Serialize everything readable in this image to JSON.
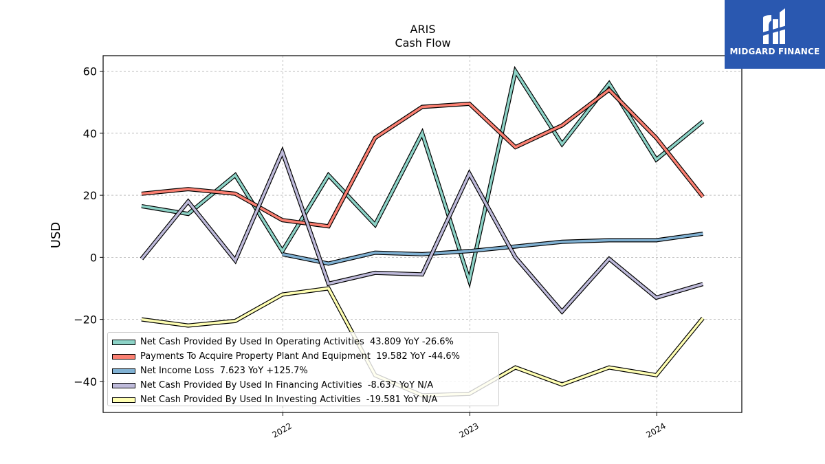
{
  "logo": {
    "text": "MIDGARD FINANCE",
    "color": "#2a58b0"
  },
  "chart_data": {
    "type": "line",
    "title": "ARIS",
    "subtitle": "Cash Flow",
    "xlabel": "",
    "ylabel": "USD",
    "ylim": [
      -50,
      65
    ],
    "xlim": [
      "2021-01-15",
      "2024-06-15"
    ],
    "yticks": [
      -40,
      -20,
      0,
      20,
      40,
      60
    ],
    "ytick_labels": [
      "−40",
      "−20",
      "0",
      "20",
      "40",
      "60"
    ],
    "xticks": [
      "2022-01-01",
      "2023-01-01",
      "2024-01-01"
    ],
    "xtick_labels": [
      "2022",
      "2023",
      "2024"
    ],
    "grid": true,
    "legend_position": "lower-left",
    "series": [
      {
        "name": "Net Cash Provided By Used In Operating Activities",
        "legend_label": "Net Cash Provided By Used In Operating Activities  43.809 YoY -26.6%",
        "color": "#8dd3c7",
        "x": [
          "2021-03-31",
          "2021-06-30",
          "2021-09-30",
          "2021-12-31",
          "2022-03-31",
          "2022-06-30",
          "2022-09-30",
          "2022-12-31",
          "2023-03-31",
          "2023-06-30",
          "2023-09-30",
          "2023-12-31",
          "2024-03-31"
        ],
        "values": [
          16.5,
          14.0,
          26.5,
          2.0,
          26.5,
          10.5,
          40.0,
          -7.5,
          60.0,
          36.5,
          56.0,
          31.5,
          43.8
        ]
      },
      {
        "name": "Payments To Acquire Property Plant And Equipment",
        "legend_label": "Payments To Acquire Property Plant And Equipment  19.582 YoY -44.6%",
        "color": "#fb8072",
        "x": [
          "2021-03-31",
          "2021-06-30",
          "2021-09-30",
          "2021-12-31",
          "2022-03-31",
          "2022-06-30",
          "2022-09-30",
          "2022-12-31",
          "2023-03-31",
          "2023-06-30",
          "2023-09-30",
          "2023-12-31",
          "2024-03-31"
        ],
        "values": [
          20.5,
          22.0,
          20.5,
          12.0,
          10.0,
          38.5,
          48.5,
          49.5,
          35.5,
          42.5,
          54.0,
          38.5,
          19.5
        ]
      },
      {
        "name": "Net Income Loss",
        "legend_label": "Net Income Loss  7.623 YoY +125.7%",
        "color": "#80b1d3",
        "x": [
          "2021-12-31",
          "2022-03-31",
          "2022-06-30",
          "2022-09-30",
          "2022-12-31",
          "2023-03-31",
          "2023-06-30",
          "2023-09-30",
          "2023-12-31",
          "2024-03-31"
        ],
        "values": [
          1.0,
          -2.0,
          1.5,
          1.0,
          2.0,
          3.5,
          5.0,
          5.5,
          5.5,
          7.6
        ]
      },
      {
        "name": "Net Cash Provided By Used In Financing Activities",
        "legend_label": "Net Cash Provided By Used In Financing Activities  -8.637 YoY N/A",
        "color": "#bebada",
        "x": [
          "2021-03-31",
          "2021-06-30",
          "2021-09-30",
          "2021-12-31",
          "2022-03-31",
          "2022-06-30",
          "2022-09-30",
          "2022-12-31",
          "2023-03-31",
          "2023-06-30",
          "2023-09-30",
          "2023-12-31",
          "2024-03-31"
        ],
        "values": [
          -0.5,
          18.0,
          -1.0,
          34.0,
          -8.5,
          -5.0,
          -5.5,
          27.0,
          0.0,
          -17.5,
          -0.5,
          -13.0,
          -8.6
        ]
      },
      {
        "name": "Net Cash Provided By Used In Investing Activities",
        "legend_label": "Net Cash Provided By Used In Investing Activities  -19.581 YoY N/A",
        "color": "#ffffb3",
        "x": [
          "2021-03-31",
          "2021-06-30",
          "2021-09-30",
          "2021-12-31",
          "2022-03-31",
          "2022-06-30",
          "2022-09-30",
          "2022-12-31",
          "2023-03-31",
          "2023-06-30",
          "2023-09-30",
          "2023-12-31",
          "2024-03-31"
        ],
        "values": [
          -20.0,
          -22.0,
          -20.5,
          -12.0,
          -10.0,
          -38.0,
          -44.5,
          -44.0,
          -35.5,
          -41.0,
          -35.5,
          -38.0,
          -19.6
        ]
      }
    ]
  }
}
